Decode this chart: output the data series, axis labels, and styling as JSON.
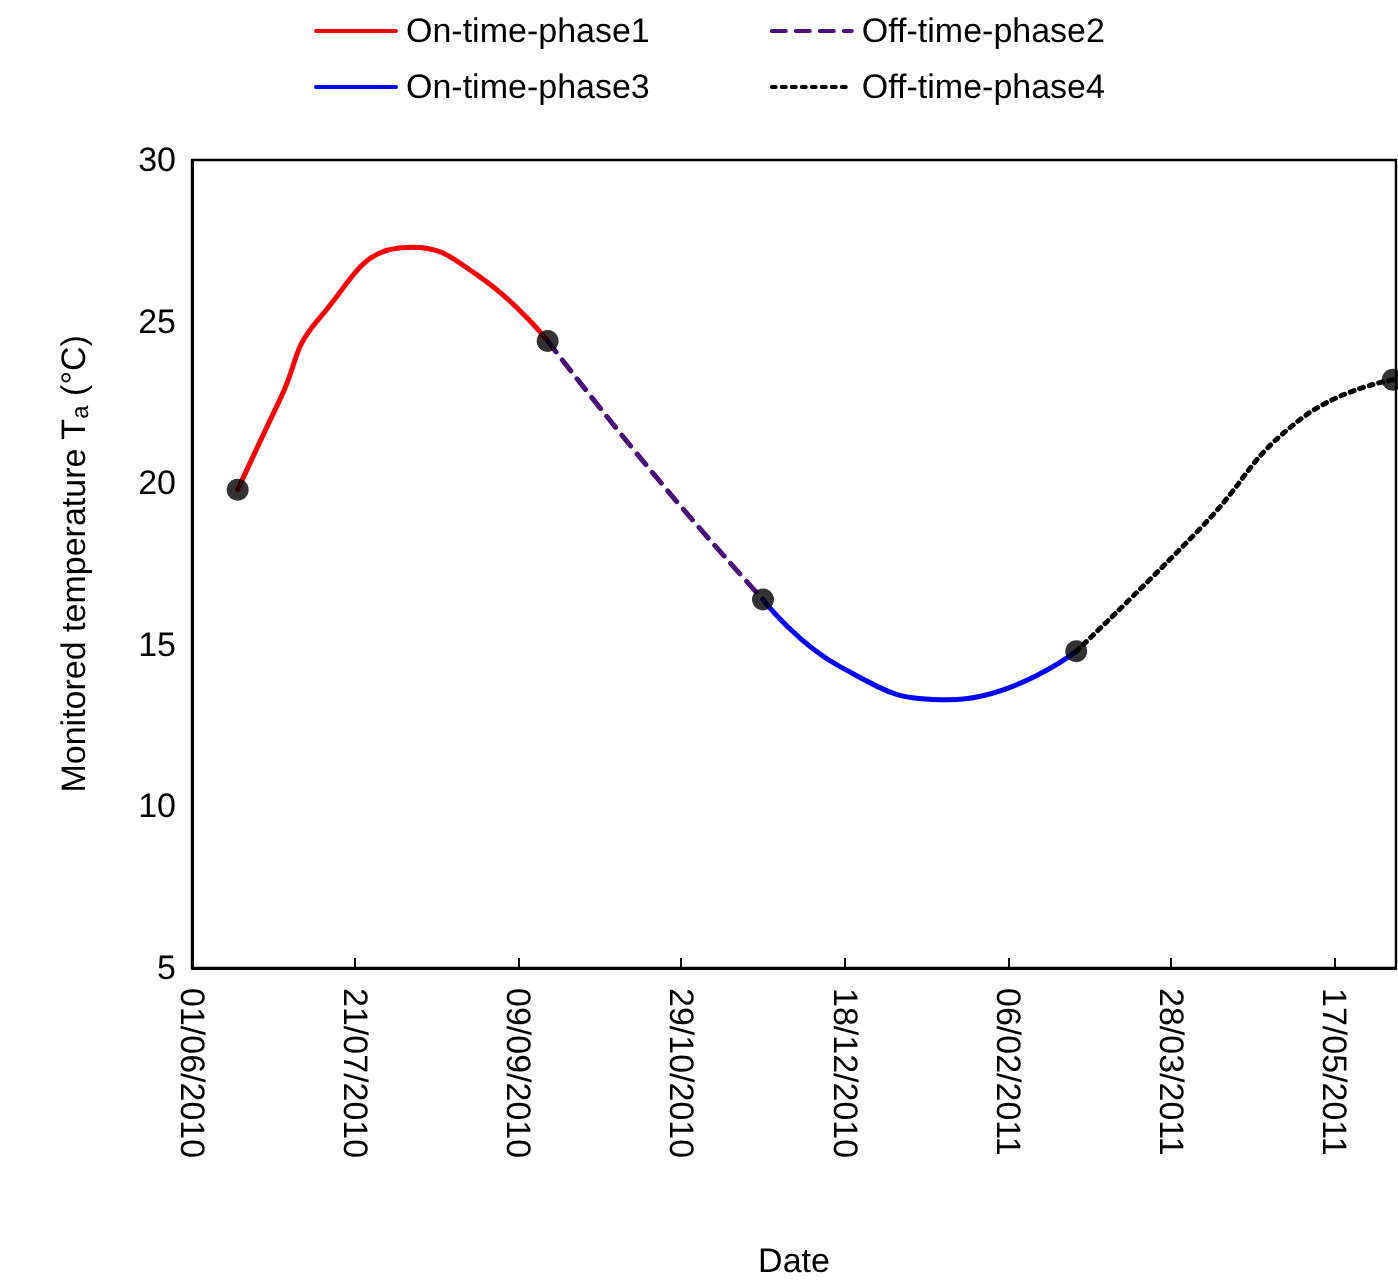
{
  "chart_data": {
    "type": "line",
    "xlabel": "Date",
    "ylabel": "Monitored temperature T$_{a}$ (°C)",
    "legend": "top",
    "xlim": [
      "2010-06-01",
      "2011-06-05"
    ],
    "xticks": [
      {
        "value": "2010-06-01",
        "label": "01/06/2010"
      },
      {
        "value": "2010-07-21",
        "label": "21/07/2010"
      },
      {
        "value": "2010-09-09",
        "label": "09/09/2010"
      },
      {
        "value": "2010-10-29",
        "label": "29/10/2010"
      },
      {
        "value": "2010-12-18",
        "label": "18/12/2010"
      },
      {
        "value": "2011-02-06",
        "label": "06/02/2011"
      },
      {
        "value": "2011-03-28",
        "label": "28/03/2011"
      },
      {
        "value": "2011-05-17",
        "label": "17/05/2011"
      }
    ],
    "ylim": [
      5,
      30
    ],
    "yticks": [
      5,
      10,
      15,
      20,
      25,
      30
    ],
    "series": [
      {
        "name": "On-time-phase1",
        "color": "#ff0000",
        "line_style": "solid",
        "marker": "none",
        "x": [
          "2010-06-15",
          "2010-06-28",
          "2010-07-10",
          "2010-08-07",
          "2010-08-28",
          "2010-09-18"
        ],
        "values": [
          19.8,
          22.6,
          25.1,
          27.3,
          26.4,
          24.4
        ]
      },
      {
        "name": "Off-time-phase2",
        "color": "#4b0f7a",
        "line_style": "dashed",
        "marker": "none",
        "x": [
          "2010-09-18",
          "2010-10-22",
          "2010-11-23"
        ],
        "values": [
          24.4,
          20.1,
          16.4
        ]
      },
      {
        "name": "On-time-phase3",
        "color": "#0000ff",
        "line_style": "solid",
        "marker": "none",
        "x": [
          "2010-11-23",
          "2010-12-17",
          "2011-01-19",
          "2011-02-27"
        ],
        "values": [
          16.4,
          14.3,
          13.3,
          14.8
        ]
      },
      {
        "name": "Off-time-phase4",
        "color": "#000000",
        "line_style": "dotted",
        "marker": "none",
        "x": [
          "2011-02-27",
          "2011-04-06",
          "2011-05-07",
          "2011-06-04"
        ],
        "values": [
          14.8,
          18.6,
          22.0,
          23.2
        ]
      },
      {
        "type": "scatter",
        "color": "#000000",
        "marker": "circle",
        "x": [
          "2010-06-15",
          "2010-09-18",
          "2010-11-23",
          "2011-02-27",
          "2011-06-04"
        ],
        "values": [
          19.8,
          24.4,
          16.4,
          14.8,
          23.2
        ]
      }
    ]
  }
}
